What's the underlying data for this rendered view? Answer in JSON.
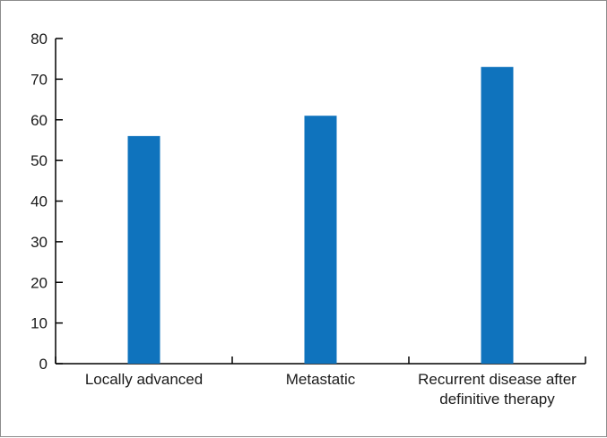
{
  "chart_data": {
    "type": "bar",
    "categories": [
      [
        "Locally advanced"
      ],
      [
        "Metastatic"
      ],
      [
        "Recurrent disease after",
        "definitive therapy"
      ]
    ],
    "values": [
      56,
      61,
      73
    ],
    "ylim": [
      0,
      80
    ],
    "yticks": [
      0,
      10,
      20,
      30,
      40,
      50,
      60,
      70,
      80
    ],
    "title": "",
    "xlabel": "",
    "ylabel": "",
    "grid": false,
    "legend": "none",
    "bar_color": "#0f73bd",
    "axis_color": "#000000"
  }
}
